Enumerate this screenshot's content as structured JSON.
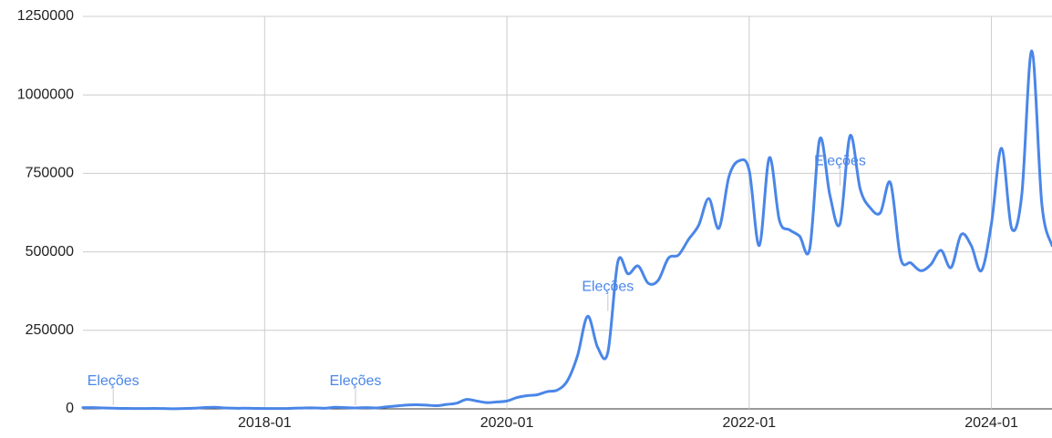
{
  "chart_data": {
    "type": "line",
    "title": "",
    "xlabel": "",
    "ylabel": "",
    "x_start": "2016-07",
    "x_end": "2024-07",
    "ylim": [
      0,
      1250000
    ],
    "y_ticks": [
      {
        "value": 0,
        "label": "0"
      },
      {
        "value": 250000,
        "label": "250000"
      },
      {
        "value": 500000,
        "label": "500000"
      },
      {
        "value": 750000,
        "label": "750000"
      },
      {
        "value": 1000000,
        "label": "1000000"
      },
      {
        "value": 1250000,
        "label": "1250000"
      }
    ],
    "x_ticks": [
      {
        "value": "2018-01",
        "label": "2018-01"
      },
      {
        "value": "2020-01",
        "label": "2020-01"
      },
      {
        "value": "2022-01",
        "label": "2022-01"
      },
      {
        "value": "2024-01",
        "label": "2024-01"
      }
    ],
    "grid": true,
    "legend": "none",
    "series": [
      {
        "color": "#4a86e8",
        "points": [
          [
            "2016-07",
            4000
          ],
          [
            "2016-08",
            4000
          ],
          [
            "2016-09",
            3000
          ],
          [
            "2016-10",
            2000
          ],
          [
            "2016-11",
            1500
          ],
          [
            "2016-12",
            1000
          ],
          [
            "2017-01",
            1000
          ],
          [
            "2017-02",
            1500
          ],
          [
            "2017-03",
            1000
          ],
          [
            "2017-04",
            500
          ],
          [
            "2017-05",
            1000
          ],
          [
            "2017-06",
            2000
          ],
          [
            "2017-07",
            4000
          ],
          [
            "2017-08",
            5000
          ],
          [
            "2017-09",
            3000
          ],
          [
            "2017-10",
            2000
          ],
          [
            "2017-11",
            2000
          ],
          [
            "2017-12",
            1500
          ],
          [
            "2018-01",
            1000
          ],
          [
            "2018-02",
            1000
          ],
          [
            "2018-03",
            1000
          ],
          [
            "2018-04",
            2000
          ],
          [
            "2018-05",
            3000
          ],
          [
            "2018-06",
            3000
          ],
          [
            "2018-07",
            2000
          ],
          [
            "2018-08",
            5000
          ],
          [
            "2018-09",
            4000
          ],
          [
            "2018-10",
            3000
          ],
          [
            "2018-11",
            4000
          ],
          [
            "2018-12",
            3000
          ],
          [
            "2019-01",
            6000
          ],
          [
            "2019-02",
            9000
          ],
          [
            "2019-03",
            12000
          ],
          [
            "2019-04",
            13000
          ],
          [
            "2019-05",
            12000
          ],
          [
            "2019-06",
            10000
          ],
          [
            "2019-07",
            14000
          ],
          [
            "2019-08",
            18000
          ],
          [
            "2019-09",
            30000
          ],
          [
            "2019-10",
            25000
          ],
          [
            "2019-11",
            20000
          ],
          [
            "2019-12",
            22000
          ],
          [
            "2020-01",
            25000
          ],
          [
            "2020-02",
            36000
          ],
          [
            "2020-03",
            42000
          ],
          [
            "2020-04",
            45000
          ],
          [
            "2020-05",
            55000
          ],
          [
            "2020-06",
            60000
          ],
          [
            "2020-07",
            90000
          ],
          [
            "2020-08",
            170000
          ],
          [
            "2020-09",
            295000
          ],
          [
            "2020-10",
            195000
          ],
          [
            "2020-11",
            180000
          ],
          [
            "2020-12",
            470000
          ],
          [
            "2021-01",
            430000
          ],
          [
            "2021-02",
            455000
          ],
          [
            "2021-03",
            400000
          ],
          [
            "2021-04",
            410000
          ],
          [
            "2021-05",
            480000
          ],
          [
            "2021-06",
            490000
          ],
          [
            "2021-07",
            540000
          ],
          [
            "2021-08",
            585000
          ],
          [
            "2021-09",
            670000
          ],
          [
            "2021-10",
            575000
          ],
          [
            "2021-11",
            740000
          ],
          [
            "2021-12",
            790000
          ],
          [
            "2022-01",
            760000
          ],
          [
            "2022-02",
            520000
          ],
          [
            "2022-03",
            800000
          ],
          [
            "2022-04",
            600000
          ],
          [
            "2022-05",
            570000
          ],
          [
            "2022-06",
            550000
          ],
          [
            "2022-07",
            510000
          ],
          [
            "2022-08",
            860000
          ],
          [
            "2022-09",
            680000
          ],
          [
            "2022-10",
            590000
          ],
          [
            "2022-11",
            870000
          ],
          [
            "2022-12",
            700000
          ],
          [
            "2023-01",
            640000
          ],
          [
            "2023-02",
            625000
          ],
          [
            "2023-03",
            720000
          ],
          [
            "2023-04",
            480000
          ],
          [
            "2023-05",
            465000
          ],
          [
            "2023-06",
            440000
          ],
          [
            "2023-07",
            460000
          ],
          [
            "2023-08",
            505000
          ],
          [
            "2023-09",
            450000
          ],
          [
            "2023-10",
            555000
          ],
          [
            "2023-11",
            520000
          ],
          [
            "2023-12",
            440000
          ],
          [
            "2024-01",
            590000
          ],
          [
            "2024-02",
            830000
          ],
          [
            "2024-03",
            575000
          ],
          [
            "2024-04",
            680000
          ],
          [
            "2024-05",
            1140000
          ],
          [
            "2024-06",
            650000
          ],
          [
            "2024-07",
            520000
          ]
        ]
      }
    ],
    "annotations": [
      {
        "x": "2016-10",
        "y": 0,
        "text": "Eleções",
        "color": "#4a86e8"
      },
      {
        "x": "2018-10",
        "y": 0,
        "text": "Eleções",
        "color": "#4a86e8"
      },
      {
        "x": "2020-11",
        "y": 300000,
        "text": "Eleções",
        "color": "#4a86e8"
      },
      {
        "x": "2022-10",
        "y": 700000,
        "text": "Eleções",
        "color": "#4a86e8"
      }
    ]
  }
}
